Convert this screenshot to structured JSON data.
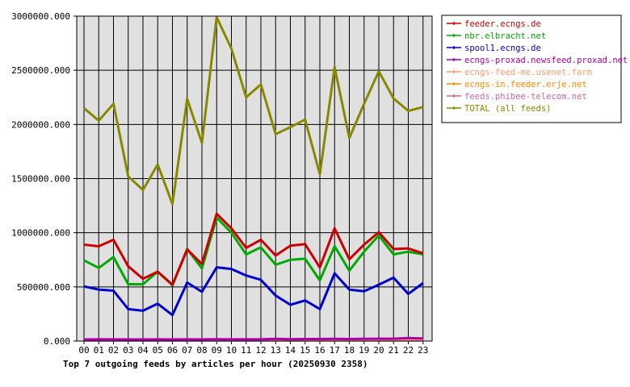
{
  "chart_data": {
    "type": "line",
    "title": "Top 7 outgoing feeds by articles per hour (20250930 2358)",
    "xlabel": "",
    "ylabel": "",
    "categories": [
      "00",
      "01",
      "02",
      "03",
      "04",
      "05",
      "06",
      "07",
      "08",
      "09",
      "10",
      "11",
      "12",
      "13",
      "14",
      "15",
      "16",
      "17",
      "18",
      "19",
      "20",
      "21",
      "22",
      "23"
    ],
    "ylim": [
      0,
      3000000
    ],
    "yticks": [
      0,
      500000,
      1000000,
      1500000,
      2000000,
      2500000,
      3000000
    ],
    "ytick_labels": [
      "0.000",
      "500000.000",
      "1000000.000",
      "1500000.000",
      "2000000.000",
      "2500000.000",
      "3000000.000"
    ],
    "grid": true,
    "legend_position": "right",
    "series": [
      {
        "name": "feeder.ecngs.de",
        "color": "#cc0000",
        "values": [
          890000,
          875000,
          935000,
          690000,
          575000,
          640000,
          520000,
          845000,
          710000,
          1175000,
          1040000,
          860000,
          935000,
          790000,
          880000,
          895000,
          680000,
          1040000,
          755000,
          890000,
          1005000,
          850000,
          855000,
          810000
        ]
      },
      {
        "name": "nbr.elbracht.net",
        "color": "#00aa00",
        "values": [
          745000,
          675000,
          775000,
          525000,
          525000,
          640000,
          515000,
          850000,
          670000,
          1140000,
          1000000,
          800000,
          865000,
          705000,
          750000,
          760000,
          560000,
          875000,
          650000,
          825000,
          975000,
          800000,
          825000,
          800000
        ]
      },
      {
        "name": "spool1.ecngs.de",
        "color": "#0000cc",
        "values": [
          505000,
          475000,
          465000,
          295000,
          280000,
          345000,
          240000,
          540000,
          455000,
          680000,
          665000,
          605000,
          565000,
          420000,
          335000,
          375000,
          295000,
          625000,
          475000,
          460000,
          520000,
          585000,
          435000,
          535000
        ]
      },
      {
        "name": "ecngs-proxad.newsfeed.proxad.net",
        "color": "#aa00aa",
        "values": [
          15000,
          16000,
          16000,
          15000,
          15000,
          16000,
          15000,
          16000,
          15000,
          17000,
          16000,
          16000,
          16000,
          20000,
          17000,
          19000,
          19000,
          20000,
          19000,
          20000,
          21000,
          21000,
          28000,
          24000
        ]
      },
      {
        "name": "ecngs-feed-me.usenet.farm",
        "color": "#ff9966",
        "values": [
          10000,
          10000,
          10000,
          10000,
          10000,
          10000,
          10000,
          10000,
          10000,
          10000,
          10000,
          10000,
          10000,
          10000,
          10000,
          10000,
          10000,
          10000,
          10000,
          10000,
          10000,
          10000,
          10000,
          10000
        ]
      },
      {
        "name": "ecngs-in.feeder.erje.net",
        "color": "#ff8800",
        "values": [
          8000,
          8000,
          8000,
          8000,
          8000,
          8000,
          8000,
          8000,
          8000,
          8000,
          8000,
          8000,
          8000,
          8000,
          8000,
          8000,
          8000,
          8000,
          8000,
          8000,
          8000,
          8000,
          8000,
          8000
        ]
      },
      {
        "name": "feeds.phibee-telecom.net",
        "color": "#cc6699",
        "values": [
          6000,
          6000,
          6000,
          6000,
          6000,
          6000,
          6000,
          6000,
          6000,
          6000,
          6000,
          6000,
          6000,
          6000,
          6000,
          6000,
          6000,
          6000,
          6000,
          6000,
          6000,
          6000,
          6000,
          6000
        ]
      },
      {
        "name": "TOTAL (all feeds)",
        "color": "#888800",
        "values": [
          2150000,
          2035000,
          2190000,
          1520000,
          1395000,
          1630000,
          1265000,
          2235000,
          1830000,
          2990000,
          2700000,
          2250000,
          2370000,
          1910000,
          1975000,
          2045000,
          1540000,
          2530000,
          1875000,
          2190000,
          2490000,
          2240000,
          2125000,
          2160000
        ]
      }
    ]
  }
}
